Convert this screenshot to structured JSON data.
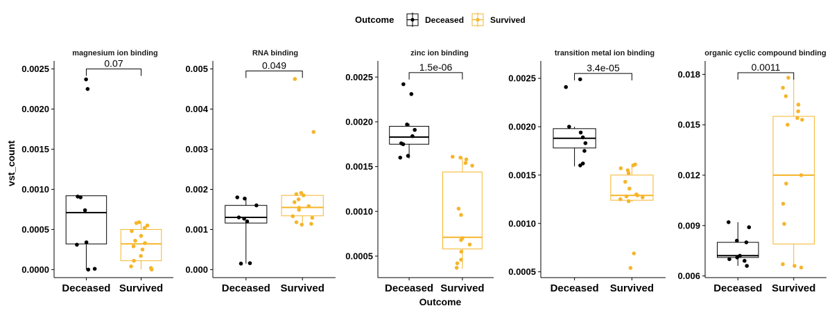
{
  "legend": {
    "title": "Outcome",
    "items": [
      {
        "label": "Deceased",
        "color": "#000000"
      },
      {
        "label": "Survived",
        "color": "#F5B52B"
      }
    ]
  },
  "axis": {
    "xlabel": "Outcome",
    "ylabel": "vst_count"
  },
  "chart_data": [
    {
      "type": "box",
      "title": "magnesium ion binding",
      "categories": [
        "Deceased",
        "Survived"
      ],
      "ylim": [
        -0.0001,
        0.0026
      ],
      "yticks": [
        0.0,
        0.0005,
        0.001,
        0.0015,
        0.002,
        0.0025
      ],
      "ytick_labels": [
        "0.0000",
        "0.0005",
        "0.0010",
        "0.0015",
        "0.0020",
        "0.0025"
      ],
      "pvalue": "0.07",
      "bracket_y": 0.0025,
      "boxes": [
        {
          "q1": 0.00032,
          "median": 0.00071,
          "q3": 0.00092,
          "whisker_low": 0.0,
          "whisker_high": 0.00092,
          "points": [
            0.00237,
            0.00225,
            0.00091,
            0.0009,
            0.00074,
            0.00034,
            0.00031,
            1e-05,
            0.0
          ]
        },
        {
          "q1": 0.00011,
          "median": 0.00032,
          "q3": 0.0005,
          "whisker_low": 0.0,
          "whisker_high": 0.00059,
          "points": [
            0.00059,
            0.00058,
            0.00055,
            0.00052,
            0.00048,
            0.00042,
            0.00036,
            0.00033,
            0.00029,
            0.00025,
            0.00017,
            0.00011,
            4e-05,
            2e-05,
            0.0
          ]
        }
      ]
    },
    {
      "type": "box",
      "title": "RNA binding",
      "categories": [
        "Deceased",
        "Survived"
      ],
      "ylim": [
        -0.0002,
        0.0052
      ],
      "yticks": [
        0.0,
        0.001,
        0.002,
        0.003,
        0.004,
        0.005
      ],
      "ytick_labels": [
        "0.000",
        "0.001",
        "0.002",
        "0.003",
        "0.004",
        "0.005"
      ],
      "pvalue": "0.049",
      "bracket_y": 0.00495,
      "boxes": [
        {
          "q1": 0.00116,
          "median": 0.0013,
          "q3": 0.0016,
          "whisker_low": 0.00015,
          "whisker_high": 0.0018,
          "points": [
            0.0018,
            0.00177,
            0.0016,
            0.0013,
            0.00127,
            0.0012,
            0.00016,
            0.00015
          ]
        },
        {
          "q1": 0.00134,
          "median": 0.00155,
          "q3": 0.00185,
          "whisker_low": 0.00112,
          "whisker_high": 0.00191,
          "points": [
            0.00475,
            0.00343,
            0.00191,
            0.00188,
            0.00185,
            0.00175,
            0.00168,
            0.00158,
            0.00154,
            0.00149,
            0.00133,
            0.00129,
            0.00118,
            0.00114,
            0.00112
          ]
        }
      ]
    },
    {
      "type": "box",
      "title": "zinc ion binding",
      "categories": [
        "Deceased",
        "Survived"
      ],
      "ylim": [
        0.00026,
        0.00268
      ],
      "yticks": [
        0.0005,
        0.001,
        0.0015,
        0.002,
        0.0025
      ],
      "ytick_labels": [
        "0.0005",
        "0.0010",
        "0.0015",
        "0.0020",
        "0.0025"
      ],
      "pvalue": "1.5e-06",
      "bracket_y": 0.00255,
      "boxes": [
        {
          "q1": 0.00175,
          "median": 0.00183,
          "q3": 0.00195,
          "whisker_low": 0.00159,
          "whisker_high": 0.00198,
          "points": [
            0.00242,
            0.00231,
            0.00197,
            0.00191,
            0.00184,
            0.00176,
            0.00175,
            0.00162,
            0.0016
          ]
        },
        {
          "q1": 0.00058,
          "median": 0.00071,
          "q3": 0.00144,
          "whisker_low": 0.00036,
          "whisker_high": 0.0016,
          "points": [
            0.00161,
            0.0016,
            0.00158,
            0.00154,
            0.00151,
            0.00103,
            0.00096,
            0.0007,
            0.00068,
            0.00063,
            0.00055,
            0.00046,
            0.00042,
            0.00037
          ]
        }
      ]
    },
    {
      "type": "box",
      "title": "transition metal ion binding",
      "categories": [
        "Deceased",
        "Survived"
      ],
      "ylim": [
        0.00044,
        0.00268
      ],
      "yticks": [
        0.0005,
        0.001,
        0.0015,
        0.002,
        0.0025
      ],
      "ytick_labels": [
        "0.0005",
        "0.0010",
        "0.0015",
        "0.0020",
        "0.0025"
      ],
      "pvalue": "3.4e-05",
      "bracket_y": 0.00255,
      "boxes": [
        {
          "q1": 0.00178,
          "median": 0.00188,
          "q3": 0.00198,
          "whisker_low": 0.00159,
          "whisker_high": 0.002,
          "points": [
            0.00249,
            0.00241,
            0.002,
            0.00194,
            0.00189,
            0.00183,
            0.00175,
            0.00162,
            0.0016
          ]
        },
        {
          "q1": 0.00124,
          "median": 0.00129,
          "q3": 0.0015,
          "whisker_low": 0.00122,
          "whisker_high": 0.00161,
          "points": [
            0.00161,
            0.0016,
            0.00157,
            0.00155,
            0.00152,
            0.00143,
            0.00136,
            0.0013,
            0.00129,
            0.00128,
            0.00127,
            0.00125,
            0.00123,
            0.00069,
            0.00054
          ]
        }
      ]
    },
    {
      "type": "box",
      "title": "organic cyclic compound binding",
      "categories": [
        "Deceased",
        "Survived"
      ],
      "ylim": [
        0.0059,
        0.0188
      ],
      "yticks": [
        0.006,
        0.009,
        0.012,
        0.015,
        0.018
      ],
      "ytick_labels": [
        "0.006",
        "0.009",
        "0.012",
        "0.015",
        "0.018"
      ],
      "pvalue": "0.0011",
      "bracket_y": 0.0181,
      "boxes": [
        {
          "q1": 0.0071,
          "median": 0.00721,
          "q3": 0.008,
          "whisker_low": 0.0066,
          "whisker_high": 0.0092,
          "points": [
            0.0092,
            0.0089,
            0.0081,
            0.008,
            0.0072,
            0.0071,
            0.007,
            0.0069,
            0.0066
          ]
        },
        {
          "q1": 0.0079,
          "median": 0.012,
          "q3": 0.0155,
          "whisker_low": 0.0065,
          "whisker_high": 0.0178,
          "points": [
            0.0178,
            0.0172,
            0.0167,
            0.0162,
            0.0158,
            0.0154,
            0.0153,
            0.015,
            0.012,
            0.0115,
            0.0103,
            0.0091,
            0.0067,
            0.0066,
            0.0065
          ]
        }
      ]
    }
  ]
}
